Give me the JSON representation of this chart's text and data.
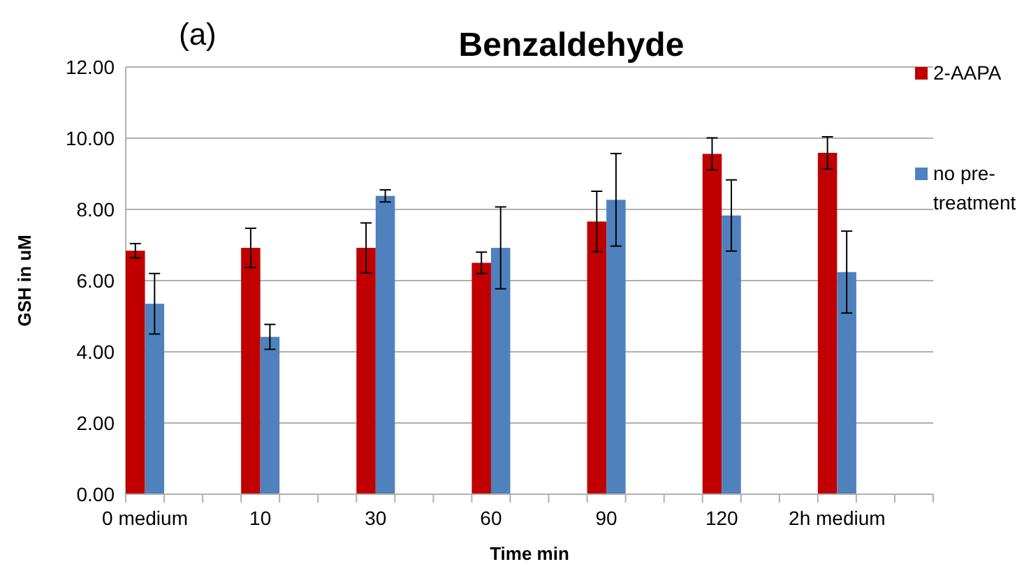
{
  "chart_data": {
    "type": "bar",
    "title": "Benzaldehyde",
    "annotations": [
      "(a)"
    ],
    "xlabel": "Time min",
    "ylabel": "GSH in uM",
    "categories": [
      "0 medium",
      null,
      null,
      "10",
      null,
      null,
      "30",
      null,
      null,
      "60",
      null,
      null,
      "90",
      null,
      null,
      "120",
      null,
      null,
      "2h medium",
      null,
      null
    ],
    "series": [
      {
        "name": "2-AAPA",
        "color": "#c00000",
        "values": [
          6.84,
          null,
          null,
          6.92,
          null,
          null,
          6.92,
          null,
          null,
          6.5,
          null,
          null,
          7.66,
          null,
          null,
          9.56,
          null,
          null,
          9.59,
          null,
          null
        ],
        "errors": [
          0.2,
          null,
          null,
          0.55,
          null,
          null,
          0.7,
          null,
          null,
          0.3,
          null,
          null,
          0.85,
          null,
          null,
          0.45,
          null,
          null,
          0.45,
          null,
          null
        ]
      },
      {
        "name": "no pre-treatment",
        "color": "#4f81bd",
        "values": [
          5.35,
          null,
          null,
          4.42,
          null,
          null,
          8.38,
          null,
          null,
          6.92,
          null,
          null,
          8.27,
          null,
          null,
          7.83,
          null,
          null,
          6.24,
          null,
          null
        ],
        "errors": [
          0.85,
          null,
          null,
          0.35,
          null,
          null,
          0.17,
          null,
          null,
          1.15,
          null,
          null,
          1.3,
          null,
          null,
          1.0,
          null,
          null,
          1.15,
          null,
          null
        ]
      }
    ],
    "ylim": [
      0,
      12
    ],
    "yticks": [
      {
        "value": 0,
        "label": "0.00"
      },
      {
        "value": 2,
        "label": "2.00"
      },
      {
        "value": 4,
        "label": "4.00"
      },
      {
        "value": 6,
        "label": "6.00"
      },
      {
        "value": 8,
        "label": "8.00"
      },
      {
        "value": 10,
        "label": "10.00"
      },
      {
        "value": 12,
        "label": "12.00"
      }
    ],
    "grid": "y",
    "legend": "right"
  }
}
